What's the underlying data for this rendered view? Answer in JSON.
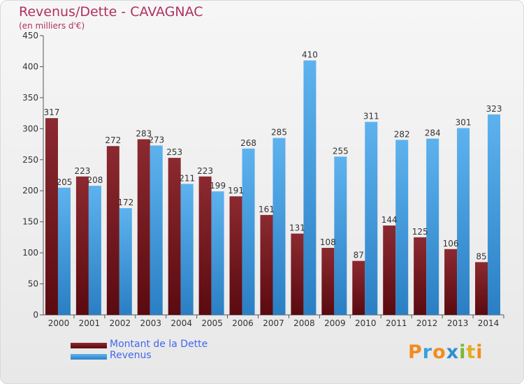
{
  "chart_data": {
    "type": "bar",
    "title": "Revenus/Dette - CAVAGNAC",
    "subtitle": "(en milliers d'€)",
    "categories": [
      "2000",
      "2001",
      "2002",
      "2003",
      "2004",
      "2005",
      "2006",
      "2007",
      "2008",
      "2009",
      "2010",
      "2011",
      "2012",
      "2013",
      "2014"
    ],
    "series": [
      {
        "name": "Montant de la Dette",
        "color": "#7a1c22",
        "values": [
          317,
          223,
          272,
          283,
          253,
          223,
          191,
          161,
          131,
          108,
          87,
          144,
          125,
          106,
          85
        ]
      },
      {
        "name": "Revenus",
        "color": "#4ea6e6",
        "values": [
          205,
          208,
          172,
          273,
          211,
          199,
          268,
          285,
          410,
          255,
          311,
          282,
          284,
          301,
          323
        ]
      }
    ],
    "yticks": [
      0,
      50,
      100,
      150,
      200,
      250,
      300,
      350,
      400,
      450
    ],
    "ylim": [
      0,
      450
    ],
    "grid": false,
    "legend_position": "bottom-left"
  },
  "logo": {
    "letters": [
      "P",
      "r",
      "o",
      "x",
      "i",
      "t",
      "i"
    ],
    "colors": [
      "#f08c1e",
      "#3aa0d8",
      "#f08c1e",
      "#2f8fd0",
      "#7cb82f",
      "#e0b020",
      "#f08c1e"
    ]
  }
}
